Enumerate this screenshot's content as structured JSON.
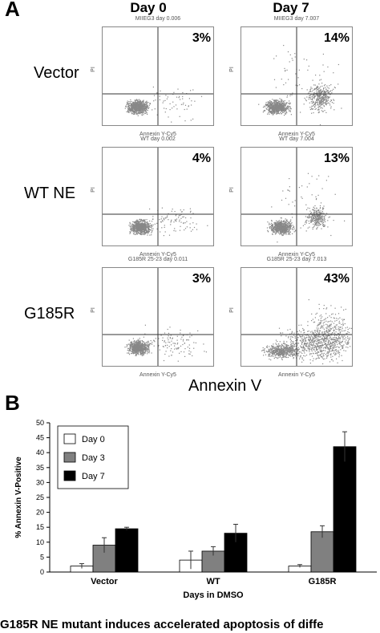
{
  "panel_a": {
    "letter": "A",
    "days": [
      "Day 0",
      "Day 7"
    ],
    "rows": [
      {
        "label": "Vector",
        "plots": [
          {
            "title": "MIIEG3 day 0.006",
            "pct": "3%"
          },
          {
            "title": "MIIEG3 day 7.007",
            "pct": "14%"
          }
        ]
      },
      {
        "label": "WT NE",
        "plots": [
          {
            "title": "WT day 0.002",
            "pct": "4%"
          },
          {
            "title": "WT day 7.004",
            "pct": "13%"
          }
        ]
      },
      {
        "label": "G185R",
        "plots": [
          {
            "title": "G185R 25-23 day 0.011",
            "pct": "3%"
          },
          {
            "title": "G185R 25-23 day 7.013",
            "pct": "43%"
          }
        ]
      }
    ],
    "x_axis_small": "Annexin Y-Cy5",
    "y_axis_small": "PI",
    "x_axis_title": "Annexin V"
  },
  "panel_b": {
    "letter": "B",
    "colors": {
      "day0": "#ffffff",
      "day3": "#808080",
      "day7": "#000000"
    }
  },
  "chart_data": {
    "type": "bar",
    "categories": [
      "Vector",
      "WT",
      "G185R"
    ],
    "series": [
      {
        "name": "Day 0",
        "values": [
          2,
          4,
          2
        ],
        "errors": [
          0.8,
          3,
          0.5
        ]
      },
      {
        "name": "Day 3",
        "values": [
          9,
          7,
          13.5
        ],
        "errors": [
          2.5,
          1.5,
          2
        ]
      },
      {
        "name": "Day 7",
        "values": [
          14.5,
          13,
          42
        ],
        "errors": [
          0.5,
          3,
          5
        ]
      }
    ],
    "xlabel": "Days in DMSO",
    "ylabel": "% Annexin V-Positive",
    "ylim": [
      0,
      50
    ],
    "yticks": [
      0,
      5,
      10,
      15,
      20,
      25,
      30,
      35,
      40,
      45,
      50
    ],
    "legend": "top-left"
  },
  "caption": "G185R NE mutant induces accelerated apoptosis of diffe"
}
